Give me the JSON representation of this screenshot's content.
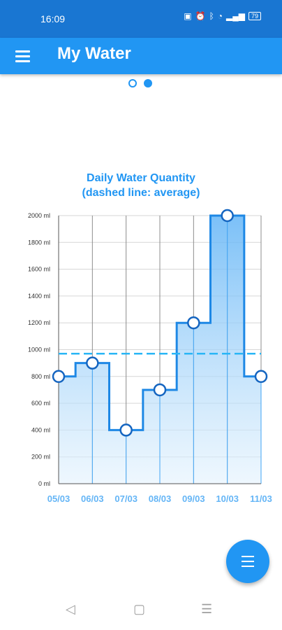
{
  "status": {
    "time": "16:09",
    "battery": "79",
    "icons": [
      "nfc-icon",
      "alarm-icon",
      "bluetooth-icon",
      "wifi-icon",
      "signal-icon",
      "battery-icon"
    ]
  },
  "appbar": {
    "title": "My Water",
    "menu_icon": "hamburger-menu-icon"
  },
  "pager": {
    "pages": 2,
    "active": 2
  },
  "chart": {
    "title_line1": "Daily Water Quantity",
    "title_line2": "(dashed line: average)"
  },
  "chart_data": {
    "type": "area",
    "title": "Daily Water Quantity (dashed line: average)",
    "categories": [
      "05/03",
      "06/03",
      "07/03",
      "08/03",
      "09/03",
      "10/03",
      "11/03"
    ],
    "values": [
      800,
      900,
      400,
      700,
      1200,
      2000,
      800
    ],
    "average": 970,
    "ylim": [
      0,
      2000
    ],
    "yticks": [
      "0 ml",
      "200 ml",
      "400 ml",
      "600 ml",
      "800 ml",
      "1000 ml",
      "1200 ml",
      "1400 ml",
      "1600 ml",
      "1800 ml",
      "2000 ml"
    ],
    "step": true,
    "grid": true,
    "colors": {
      "line": "#1e88e5",
      "fill_top": "#64b5f6",
      "fill_bottom": "#e3f2fd",
      "average": "#29b6f6",
      "axis_text": "#333333",
      "x_text": "#64b5f6"
    }
  },
  "fab": {
    "icon": "list-menu-icon"
  },
  "navbar": {
    "back_icon": "back-triangle-icon",
    "home_icon": "home-square-icon",
    "recents_icon": "recents-menu-icon"
  }
}
